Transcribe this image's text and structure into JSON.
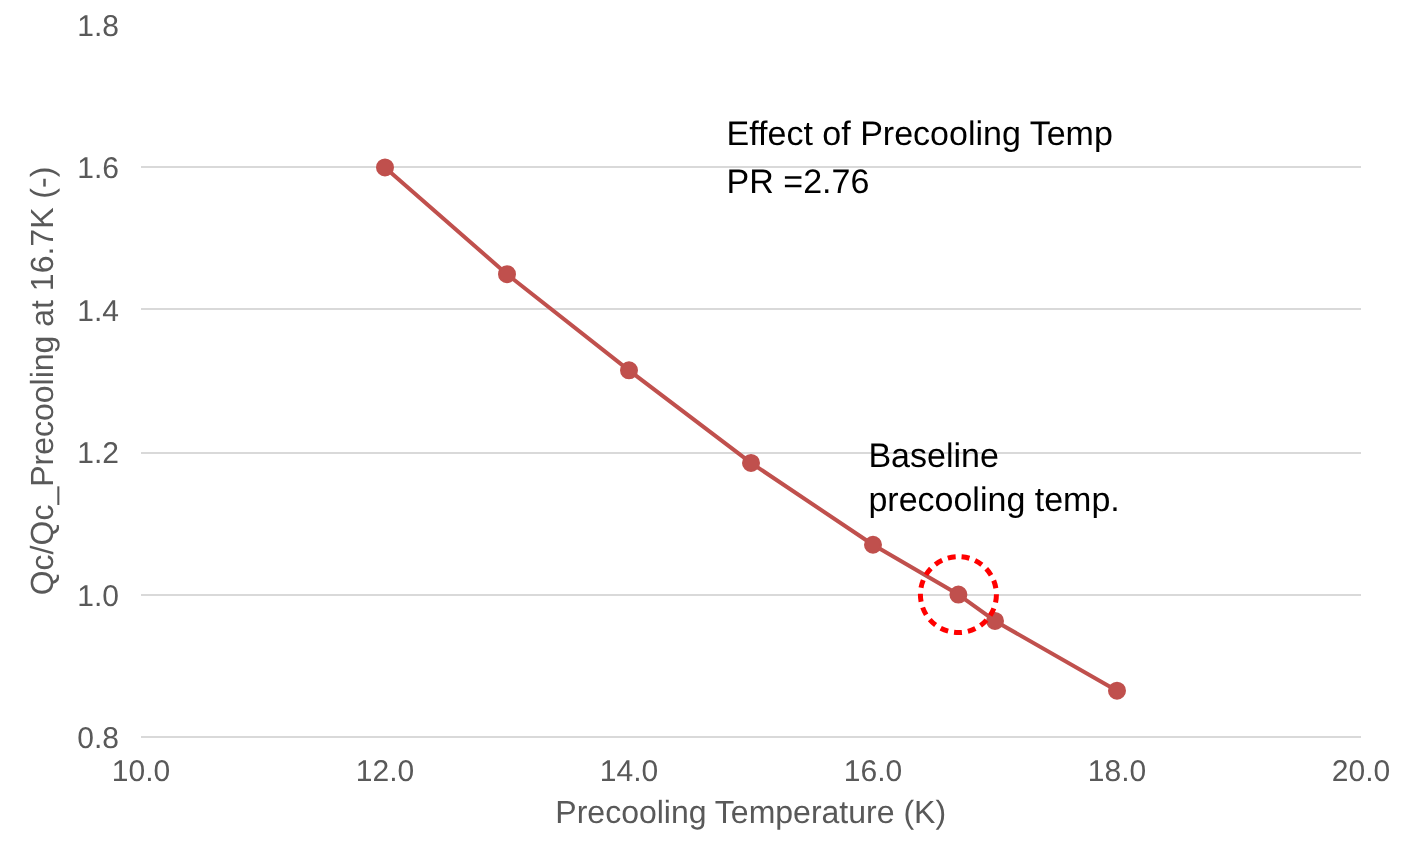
{
  "chart_data": {
    "type": "line",
    "xlabel": "Precooling Temperature (K)",
    "ylabel": "Qc/Qc_Precooling at 16.7K (-)",
    "x": [
      12,
      13,
      14,
      15,
      16,
      16.7,
      17,
      18
    ],
    "series": [
      {
        "color": "#c0504d",
        "values": [
          1.6,
          1.45,
          1.315,
          1.185,
          1.07,
          1.0,
          0.963,
          0.865
        ]
      }
    ],
    "xlim": [
      10,
      20
    ],
    "xticks": [
      {
        "value": 10,
        "label": "10.0"
      },
      {
        "value": 12,
        "label": "12.0"
      },
      {
        "value": 14,
        "label": "14.0"
      },
      {
        "value": 16,
        "label": "16.0"
      },
      {
        "value": 18,
        "label": "18.0"
      },
      {
        "value": 20,
        "label": "20.0"
      }
    ],
    "ylim": [
      0.8,
      1.8
    ],
    "yticks": [
      {
        "value": 0.8,
        "label": "0.8"
      },
      {
        "value": 1.0,
        "label": "1.0"
      },
      {
        "value": 1.2,
        "label": "1.2"
      },
      {
        "value": 1.4,
        "label": "1.4"
      },
      {
        "value": 1.6,
        "label": "1.6"
      },
      {
        "value": 1.8,
        "label": "1.8"
      }
    ],
    "grid": "y",
    "marker": "circle",
    "line_style": "solid",
    "annotations": [
      "Effect of Precooling Temp\nPR =2.76",
      {
        "text": "Baseline\nprecooling temp.",
        "x": 16.7,
        "y": 1.0
      }
    ]
  }
}
